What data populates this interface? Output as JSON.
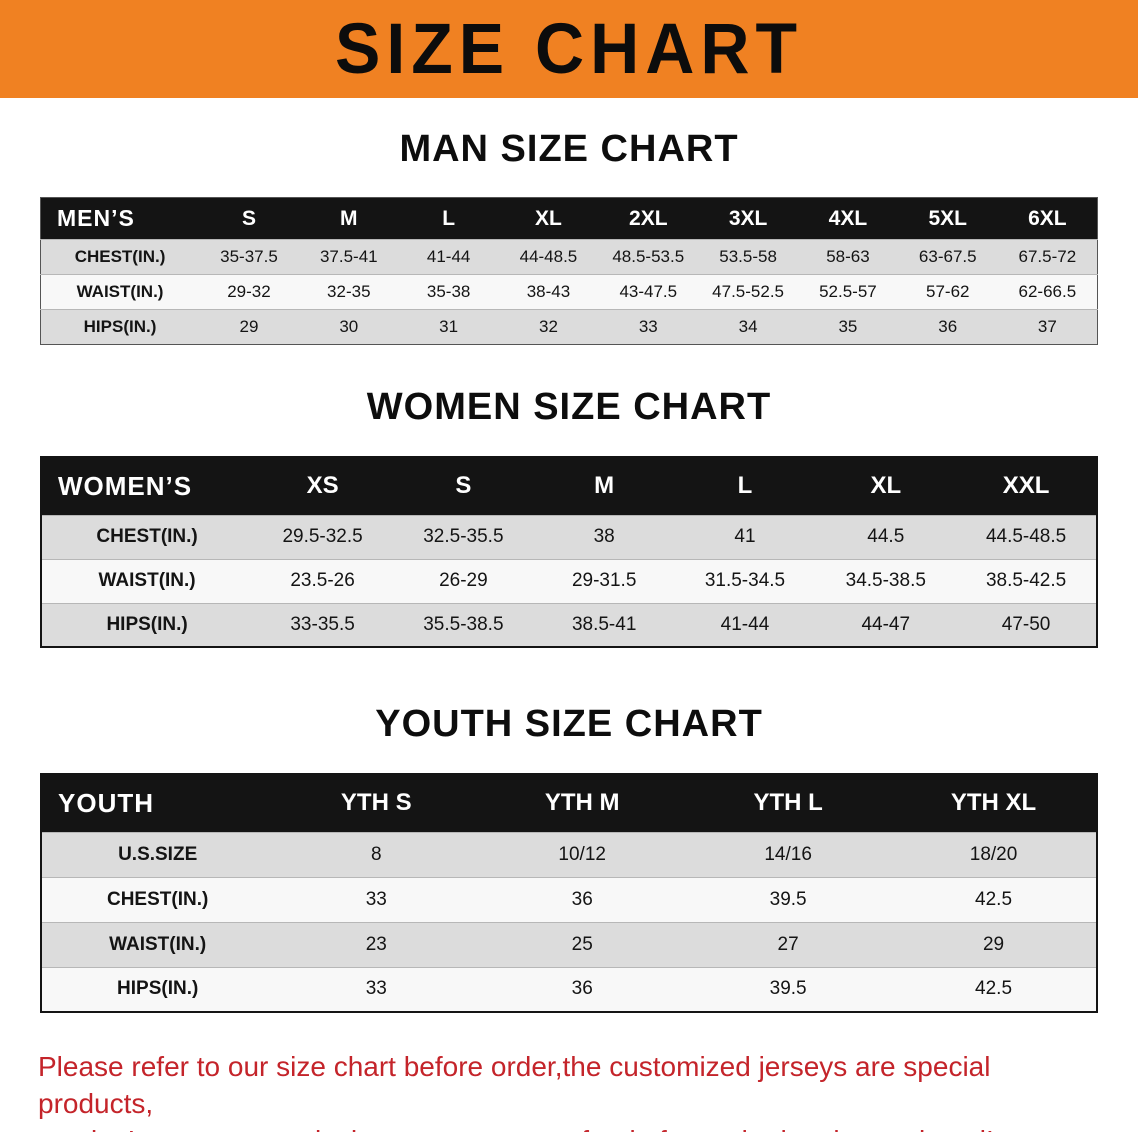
{
  "banner": {
    "title": "SIZE CHART",
    "bg_color": "#f08122",
    "text_color": "#0c0c0c"
  },
  "sections": [
    {
      "id": "men",
      "heading": "MAN SIZE CHART",
      "table": {
        "header": [
          "MEN’S",
          "S",
          "M",
          "L",
          "XL",
          "2XL",
          "3XL",
          "4XL",
          "5XL",
          "6XL"
        ],
        "rows": [
          [
            "CHEST(IN.)",
            "35-37.5",
            "37.5-41",
            "41-44",
            "44-48.5",
            "48.5-53.5",
            "53.5-58",
            "58-63",
            "63-67.5",
            "67.5-72"
          ],
          [
            "WAIST(IN.)",
            "29-32",
            "32-35",
            "35-38",
            "38-43",
            "43-47.5",
            "47.5-52.5",
            "52.5-57",
            "57-62",
            "62-66.5"
          ],
          [
            "HIPS(IN.)",
            "29",
            "30",
            "31",
            "32",
            "33",
            "34",
            "35",
            "36",
            "37"
          ]
        ]
      }
    },
    {
      "id": "women",
      "heading": "WOMEN SIZE CHART",
      "table": {
        "header": [
          "WOMEN’S",
          "XS",
          "S",
          "M",
          "L",
          "XL",
          "XXL"
        ],
        "rows": [
          [
            "CHEST(IN.)",
            "29.5-32.5",
            "32.5-35.5",
            "38",
            "41",
            "44.5",
            "44.5-48.5"
          ],
          [
            "WAIST(IN.)",
            "23.5-26",
            "26-29",
            "29-31.5",
            "31.5-34.5",
            "34.5-38.5",
            "38.5-42.5"
          ],
          [
            "HIPS(IN.)",
            "33-35.5",
            "35.5-38.5",
            "38.5-41",
            "41-44",
            "44-47",
            "47-50"
          ]
        ]
      }
    },
    {
      "id": "youth",
      "heading": "YOUTH SIZE CHART",
      "table": {
        "header": [
          "YOUTH",
          "YTH S",
          "YTH M",
          "YTH L",
          "YTH XL"
        ],
        "rows": [
          [
            "U.S.SIZE",
            "8",
            "10/12",
            "14/16",
            "18/20"
          ],
          [
            "CHEST(IN.)",
            "33",
            "36",
            "39.5",
            "42.5"
          ],
          [
            "WAIST(IN.)",
            "23",
            "25",
            "27",
            "29"
          ],
          [
            "HIPS(IN.)",
            "33",
            "36",
            "39.5",
            "42.5"
          ]
        ]
      }
    }
  ],
  "disclaimer": {
    "line1": "Please refer to our size chart before order,the customized jerseys are special products,",
    "line2": "we don’t accept cancel, change, teturn or refund after order has been placed!",
    "text_color": "#c4242a"
  }
}
